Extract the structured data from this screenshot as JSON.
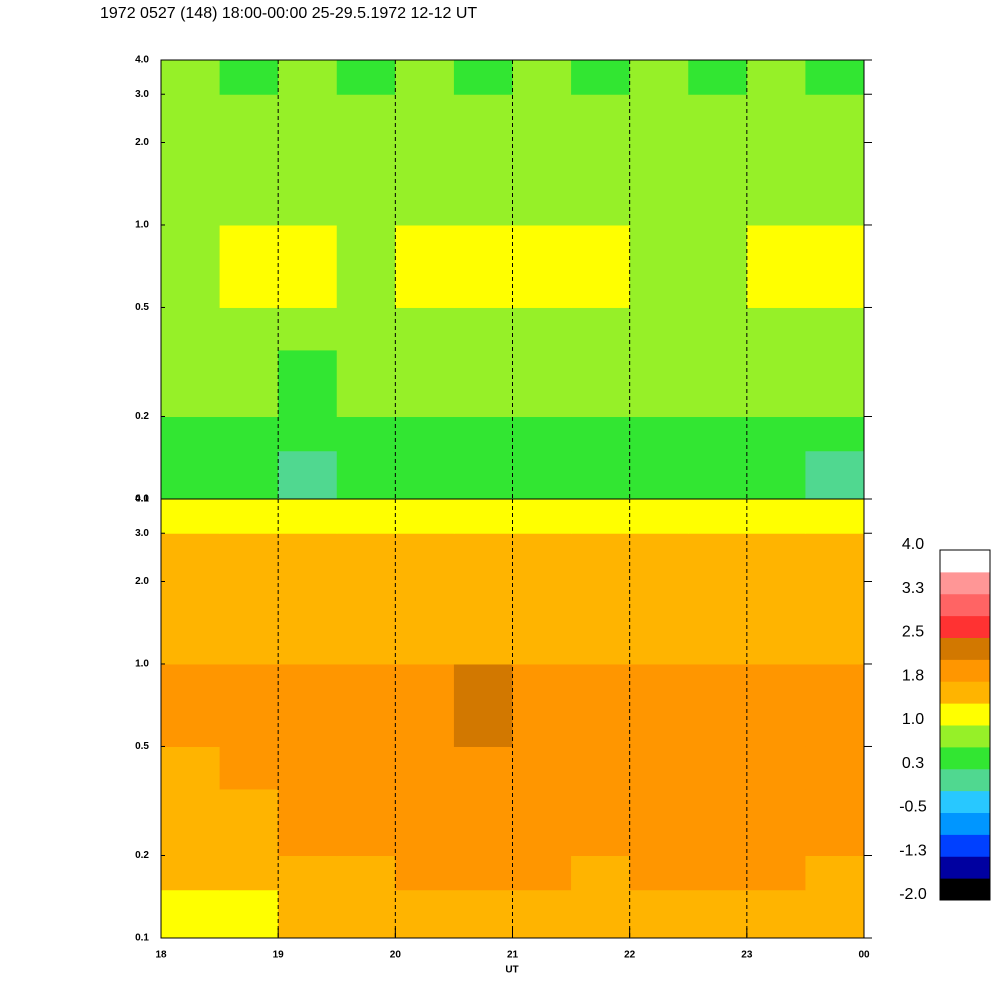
{
  "chart_data": {
    "type": "heatmap",
    "title": "1972 0527 (148) 18:00-00:00 25-29.5.1972  12-12 UT",
    "x_label": "UT",
    "xlim": [
      18,
      24
    ],
    "xticks": [
      18,
      19,
      20,
      21,
      22,
      23,
      {
        "value": 24,
        "label": "00"
      }
    ],
    "grid": true,
    "log_y": true,
    "x_edges": [
      18,
      18.5,
      19,
      19.5,
      20,
      20.5,
      21,
      21.5,
      22,
      22.5,
      23,
      23.5,
      24
    ],
    "panels": [
      {
        "ylim": [
          0.1,
          4.0
        ],
        "yticks": [
          0.1,
          0.2,
          0.5,
          {
            "value": 1,
            "label": "1.0"
          },
          {
            "value": 2,
            "label": "2.0"
          },
          {
            "value": 3,
            "label": "3.0"
          },
          {
            "value": 4,
            "label": "4.0"
          }
        ],
        "y_edges": [
          0.1,
          0.15,
          0.2,
          0.35,
          0.5,
          1.0,
          2.0,
          3.0,
          4.0
        ],
        "values": [
          [
            0.5,
            0.35,
            0.2,
            0.45,
            0.5,
            0.45,
            0.5,
            0.45,
            0.5,
            0.45,
            0.3,
            0.2
          ],
          [
            0.6,
            0.55,
            0.5,
            0.55,
            0.6,
            0.55,
            0.6,
            0.55,
            0.6,
            0.55,
            0.5,
            0.5
          ],
          [
            0.8,
            0.75,
            0.6,
            0.7,
            0.75,
            0.7,
            0.75,
            0.7,
            0.7,
            0.7,
            0.75,
            0.7
          ],
          [
            0.9,
            0.9,
            0.8,
            0.85,
            0.9,
            0.95,
            0.9,
            0.85,
            0.85,
            0.85,
            0.95,
            0.9
          ],
          [
            0.95,
            1.0,
            1.05,
            0.95,
            1.0,
            1.05,
            1.0,
            1.0,
            0.95,
            0.95,
            1.05,
            1.05
          ],
          [
            0.8,
            0.85,
            0.85,
            0.8,
            0.85,
            0.8,
            0.85,
            0.8,
            0.85,
            0.8,
            0.85,
            0.9
          ],
          [
            0.7,
            0.65,
            0.7,
            0.7,
            0.65,
            0.7,
            0.7,
            0.65,
            0.7,
            0.7,
            0.65,
            0.7
          ],
          [
            0.65,
            0.6,
            0.65,
            0.6,
            0.65,
            0.6,
            0.65,
            0.6,
            0.65,
            0.6,
            0.65,
            0.6
          ]
        ]
      },
      {
        "ylim": [
          0.1,
          4.0
        ],
        "yticks": [
          0.1,
          0.2,
          0.5,
          {
            "value": 1,
            "label": "1.0"
          },
          {
            "value": 2,
            "label": "2.0"
          },
          {
            "value": 3,
            "label": "3.0"
          },
          {
            "value": 4,
            "label": "4.0"
          }
        ],
        "y_edges": [
          0.1,
          0.15,
          0.2,
          0.35,
          0.5,
          1.0,
          2.0,
          3.0,
          4.0
        ],
        "values": [
          [
            1.2,
            1.3,
            1.5,
            1.45,
            1.6,
            1.6,
            1.55,
            1.5,
            1.55,
            1.6,
            1.65,
            1.5
          ],
          [
            1.45,
            1.5,
            1.7,
            1.6,
            1.8,
            1.8,
            1.75,
            1.7,
            1.75,
            1.8,
            1.8,
            1.7
          ],
          [
            1.6,
            1.65,
            1.8,
            1.75,
            1.85,
            1.9,
            1.85,
            1.8,
            1.8,
            1.85,
            1.9,
            1.8
          ],
          [
            1.7,
            1.75,
            1.8,
            1.8,
            1.9,
            1.95,
            1.9,
            1.85,
            1.85,
            1.9,
            1.9,
            1.85
          ],
          [
            1.85,
            1.8,
            1.85,
            1.85,
            2.0,
            2.15,
            2.05,
            1.95,
            1.9,
            1.95,
            1.9,
            1.85
          ],
          [
            1.55,
            1.5,
            1.6,
            1.55,
            1.6,
            1.65,
            1.6,
            1.6,
            1.55,
            1.6,
            1.55,
            1.5
          ],
          [
            1.4,
            1.45,
            1.4,
            1.45,
            1.5,
            1.45,
            1.4,
            1.45,
            1.5,
            1.45,
            1.4,
            1.45
          ],
          [
            1.2,
            1.25,
            1.2,
            1.25,
            1.3,
            1.25,
            1.2,
            1.25,
            1.3,
            1.25,
            1.2,
            1.25
          ]
        ]
      }
    ],
    "colorbar": {
      "lim": [
        -2.0,
        4.0
      ],
      "colors": [
        "#000000",
        "#0000a0",
        "#0040ff",
        "#0096ff",
        "#28c8ff",
        "#50d890",
        "#32e632",
        "#96f028",
        "#ffff00",
        "#ffb400",
        "#ff9600",
        "#d27800",
        "#ff3232",
        "#ff6464",
        "#ff9696",
        "#ffffff"
      ],
      "ticks": [
        {
          "value": 4,
          "label": "4.0"
        },
        {
          "value": 3.25,
          "label": "3.3"
        },
        2.5,
        {
          "value": 1.75,
          "label": "1.8"
        },
        {
          "value": 1,
          "label": "1.0"
        },
        {
          "value": 0.25,
          "label": "0.3"
        },
        -0.5,
        {
          "value": -1.25,
          "label": "-1.3"
        },
        {
          "value": -2,
          "label": "-2.0"
        }
      ]
    }
  }
}
